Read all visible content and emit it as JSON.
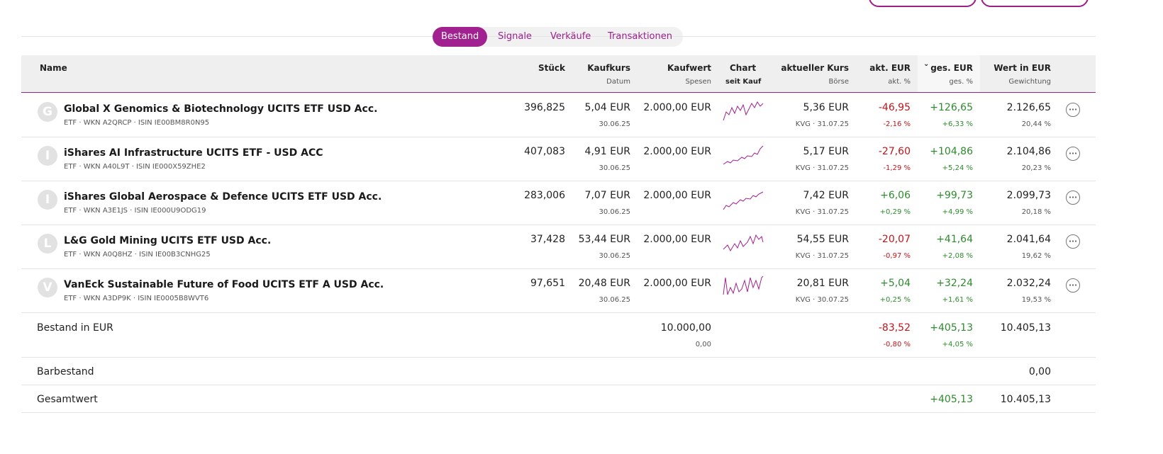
{
  "tabs": [
    "Bestand",
    "Signale",
    "Verkäufe",
    "Transaktionen"
  ],
  "header": {
    "name": "Name",
    "stueck": "Stück",
    "kaufkurs": "Kaufkurs",
    "datum": "Datum",
    "kaufwert": "Kaufwert",
    "spesen": "Spesen",
    "chart": "Chart",
    "seit_kauf": "seit Kauf",
    "kurs": "aktueller Kurs",
    "boerse": "Börse",
    "akt": "akt. EUR",
    "akt_pct": "akt. %",
    "ges": "ges. EUR",
    "ges_pct": "ges. %",
    "wert": "Wert in EUR",
    "gewichtung": "Gewichtung"
  },
  "rows": [
    {
      "avatar": "G",
      "name": "Global X Genomics & Biotechnology UCITS ETF USD Acc.",
      "meta": "ETF · WKN A2QRCP · ISIN IE00BM8R0N95",
      "stueck": "396,825",
      "kaufkurs": "5,04 EUR",
      "datum": "30.06.25",
      "kaufwert": "2.000,00 EUR",
      "kurs": "5,36 EUR",
      "kurs_meta": "KVG · 31.07.25",
      "akt": "-46,95",
      "akt_pct": "-2,16 %",
      "ges": "+126,65",
      "ges_pct": "+6,33 %",
      "wert": "2.126,65",
      "gewichtung": "20,44 %"
    },
    {
      "avatar": "I",
      "name": "iShares AI Infrastructure UCITS ETF - USD ACC",
      "meta": "ETF · WKN A40L9T · ISIN IE000X59ZHE2",
      "stueck": "407,083",
      "kaufkurs": "4,91 EUR",
      "datum": "30.06.25",
      "kaufwert": "2.000,00 EUR",
      "kurs": "5,17 EUR",
      "kurs_meta": "KVG · 31.07.25",
      "akt": "-27,60",
      "akt_pct": "-1,29 %",
      "ges": "+104,86",
      "ges_pct": "+5,24 %",
      "wert": "2.104,86",
      "gewichtung": "20,23 %"
    },
    {
      "avatar": "I",
      "name": "iShares Global Aerospace & Defence UCITS ETF USD Acc.",
      "meta": "ETF · WKN A3E1JS · ISIN IE000U9ODG19",
      "stueck": "283,006",
      "kaufkurs": "7,07 EUR",
      "datum": "30.06.25",
      "kaufwert": "2.000,00 EUR",
      "kurs": "7,42 EUR",
      "kurs_meta": "KVG · 31.07.25",
      "akt": "+6,06",
      "akt_pct": "+0,29 %",
      "ges": "+99,73",
      "ges_pct": "+4,99 %",
      "wert": "2.099,73",
      "gewichtung": "20,18 %"
    },
    {
      "avatar": "L",
      "name": "L&G Gold Mining UCITS ETF USD Acc.",
      "meta": "ETF · WKN A0Q8HZ · ISIN IE00B3CNHG25",
      "stueck": "37,428",
      "kaufkurs": "53,44 EUR",
      "datum": "30.06.25",
      "kaufwert": "2.000,00 EUR",
      "kurs": "54,55 EUR",
      "kurs_meta": "KVG · 31.07.25",
      "akt": "-20,07",
      "akt_pct": "-0,97 %",
      "ges": "+41,64",
      "ges_pct": "+2,08 %",
      "wert": "2.041,64",
      "gewichtung": "19,62 %"
    },
    {
      "avatar": "V",
      "name": "VanEck Sustainable Future of Food UCITS ETF A USD Acc.",
      "meta": "ETF · WKN A3DP9K · ISIN IE0005B8WVT6",
      "stueck": "97,651",
      "kaufkurs": "20,48 EUR",
      "datum": "30.06.25",
      "kaufwert": "2.000,00 EUR",
      "kurs": "20,81 EUR",
      "kurs_meta": "KVG · 30.07.25",
      "akt": "+5,04",
      "akt_pct": "+0,25 %",
      "ges": "+32,24",
      "ges_pct": "+1,61 %",
      "wert": "2.032,24",
      "gewichtung": "19,53 %"
    }
  ],
  "bestand": {
    "label": "Bestand in EUR",
    "kaufwert": "10.000,00",
    "spesen": "0,00",
    "akt": "-83,52",
    "akt_pct": "-0,80 %",
    "ges": "+405,13",
    "ges_pct": "+4,05 %",
    "wert": "10.405,13"
  },
  "barbestand": {
    "label": "Barbestand",
    "wert": "0,00"
  },
  "gesamtwert": {
    "label": "Gesamtwert",
    "ges": "+405,13",
    "wert": "10.405,13"
  }
}
